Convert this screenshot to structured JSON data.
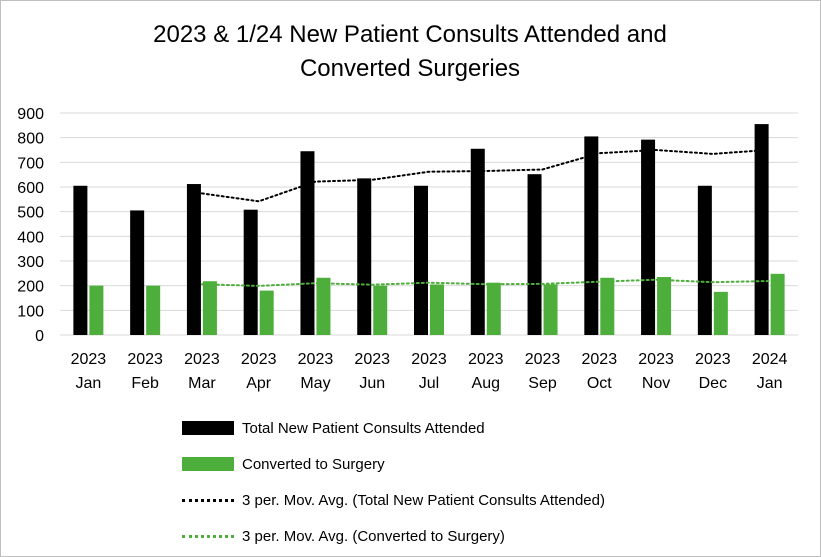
{
  "chart_data": {
    "type": "bar",
    "title_lines": [
      "2023 & 1/24 New Patient Consults Attended and",
      "Converted Surgeries"
    ],
    "categories": [
      [
        "2023",
        "Jan"
      ],
      [
        "2023",
        "Feb"
      ],
      [
        "2023",
        "Mar"
      ],
      [
        "2023",
        "Apr"
      ],
      [
        "2023",
        "May"
      ],
      [
        "2023",
        "Jun"
      ],
      [
        "2023",
        "Jul"
      ],
      [
        "2023",
        "Aug"
      ],
      [
        "2023",
        "Sep"
      ],
      [
        "2023",
        "Oct"
      ],
      [
        "2023",
        "Nov"
      ],
      [
        "2023",
        "Dec"
      ],
      [
        "2024",
        "Jan"
      ]
    ],
    "series": [
      {
        "name": "Total New Patient Consults Attended",
        "kind": "bar",
        "color": "#000000",
        "values": [
          605,
          505,
          612,
          508,
          745,
          635,
          605,
          755,
          652,
          805,
          792,
          605,
          855
        ]
      },
      {
        "name": "Converted to Surgery",
        "kind": "bar",
        "color": "#4eae3b",
        "values": [
          200,
          200,
          218,
          180,
          232,
          200,
          205,
          212,
          205,
          232,
          235,
          175,
          248
        ]
      },
      {
        "name": "3 per. Mov. Avg. (Total New Patient Consults Attended)",
        "kind": "moving_average",
        "color": "#000000",
        "values": [
          null,
          null,
          574,
          542,
          622,
          629,
          662,
          665,
          671,
          737,
          750,
          734,
          751
        ]
      },
      {
        "name": "3 per. Mov. Avg. (Converted to Surgery)",
        "kind": "moving_average",
        "color": "#4eae3b",
        "values": [
          null,
          null,
          206,
          199,
          210,
          204,
          212,
          206,
          207,
          216,
          224,
          214,
          219
        ]
      }
    ],
    "ylim": [
      0,
      900
    ],
    "yticks": [
      0,
      100,
      200,
      300,
      400,
      500,
      600,
      700,
      800,
      900
    ],
    "grid": true,
    "legend_position": "bottom"
  }
}
